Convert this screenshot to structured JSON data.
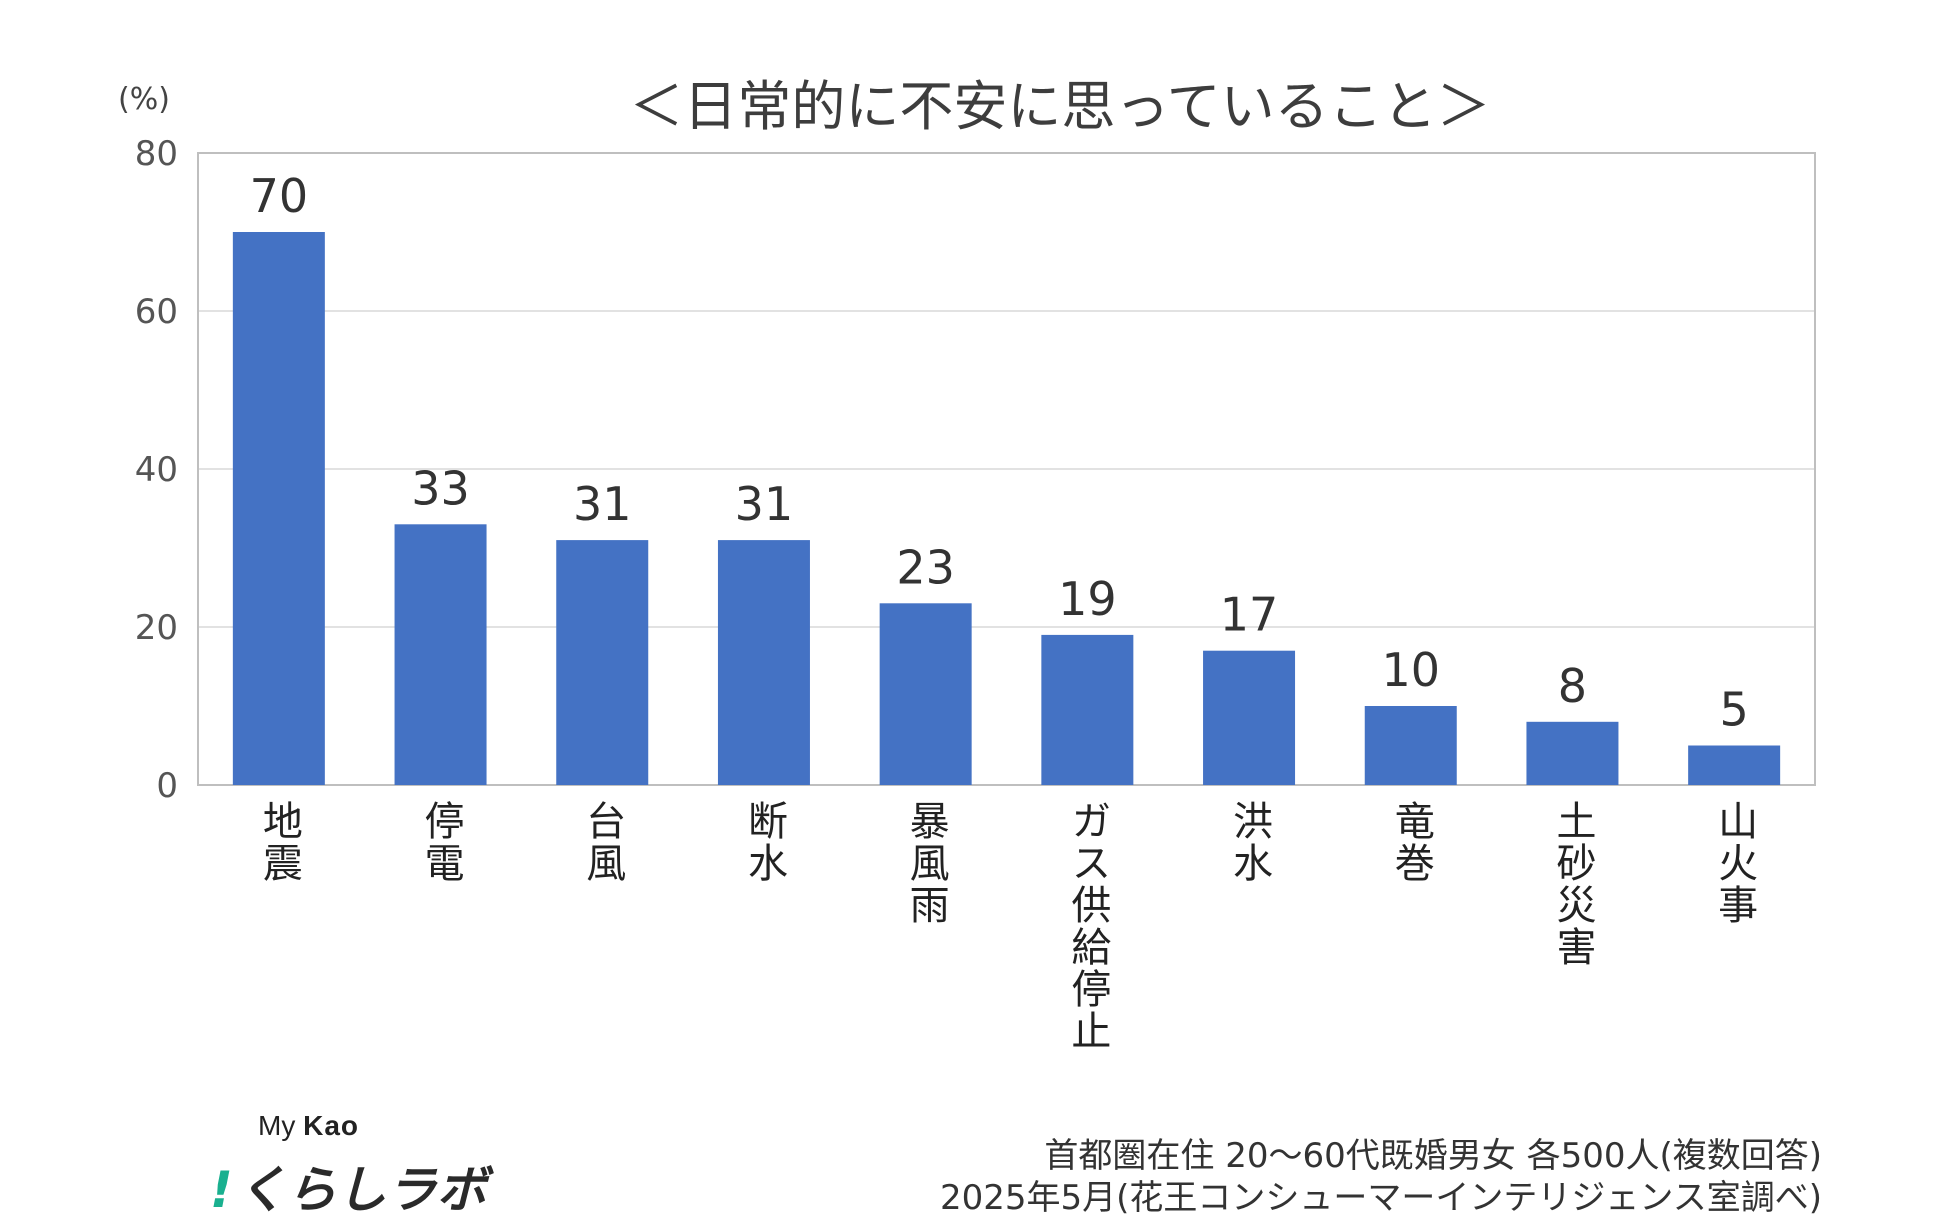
{
  "chart_data": {
    "type": "bar",
    "title": "＜日常的に不安に思っていること＞",
    "ylabel": "(%)",
    "xlabel": "",
    "ylim": [
      0,
      80
    ],
    "yticks": [
      0,
      20,
      40,
      60,
      80
    ],
    "grid": true,
    "categories": [
      "地震",
      "停電",
      "台風",
      "断水",
      "暴風雨",
      "ガス供給停止",
      "洪水",
      "竜巻",
      "土砂災害",
      "山火事"
    ],
    "values": [
      70,
      33,
      31,
      31,
      23,
      19,
      17,
      10,
      8,
      5
    ],
    "colors": {
      "bar": "#4472C4",
      "grid": "#d9d9d9",
      "axis": "#bfbfbf"
    }
  },
  "logo": {
    "prefix": "My",
    "brand": "Kao",
    "mark": "!",
    "name": "くらしラボ"
  },
  "notes": {
    "line1": "首都圏在住 20～60代既婚男女 各500人(複数回答)",
    "line2": "2025年5月(花王コンシューマーインテリジェンス室調べ)"
  }
}
